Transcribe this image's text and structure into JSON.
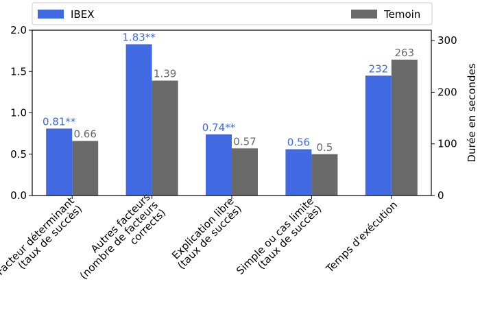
{
  "chart_data": {
    "type": "bar",
    "categories": [
      [
        "Facteur déterminant",
        "(taux de succès)"
      ],
      [
        "Autres facteurs",
        "(nombre de facteurs",
        "corrects)"
      ],
      [
        "Explication libre",
        "(taux de succès)"
      ],
      [
        "Simple ou cas limite",
        "(taux de succès)"
      ],
      [
        "Temps d'exécution"
      ]
    ],
    "series": [
      {
        "name": "IBEX",
        "color": "#4169e1",
        "label_color": "#4169e1",
        "values": [
          0.81,
          1.83,
          0.74,
          0.56,
          232
        ],
        "labels": [
          "0.81**",
          "1.83**",
          "0.74**",
          "0.56",
          "232"
        ]
      },
      {
        "name": "Temoin",
        "color": "#696969",
        "label_color": "#696969",
        "values": [
          0.66,
          1.39,
          0.57,
          0.5,
          263
        ],
        "labels": [
          "0.66",
          "1.39",
          "0.57",
          "0.5",
          "263"
        ]
      }
    ],
    "y_left": {
      "range": [
        0,
        2.0
      ],
      "ticks": [
        "0.0",
        "0.5",
        "1.0",
        "1.5",
        "2.0"
      ],
      "label": ""
    },
    "y_right": {
      "range": [
        0,
        320
      ],
      "ticks": [
        "0",
        "100",
        "200",
        "300"
      ],
      "label": "Durée en secondes",
      "applies_to_category_index": 4
    },
    "xlabel": "",
    "title": "",
    "legend_placement": "top",
    "grid": false
  }
}
